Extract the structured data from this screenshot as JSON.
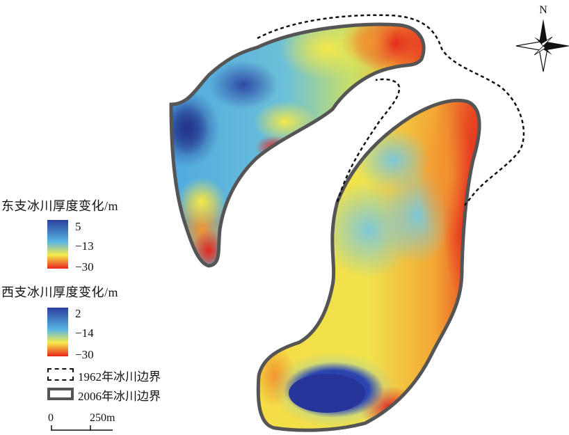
{
  "north_label": "N",
  "east_legend": {
    "title": "东支冰川厚度变化/m",
    "max": "5",
    "mid": "−13",
    "min": "−30",
    "colors": [
      "#2a3f9e",
      "#58b6e2",
      "#f6ea4a",
      "#e8251d"
    ]
  },
  "west_legend": {
    "title": "西支冰川厚度变化/m",
    "max": "2",
    "mid": "−14",
    "min": "−30",
    "colors": [
      "#2a3f9e",
      "#58b6e2",
      "#f6ea4a",
      "#e8251d"
    ]
  },
  "boundaries": {
    "y1962": "1962年冰川边界",
    "y2006": "2006年冰川边界"
  },
  "scale_bar": {
    "start": "0",
    "end": "250m"
  }
}
